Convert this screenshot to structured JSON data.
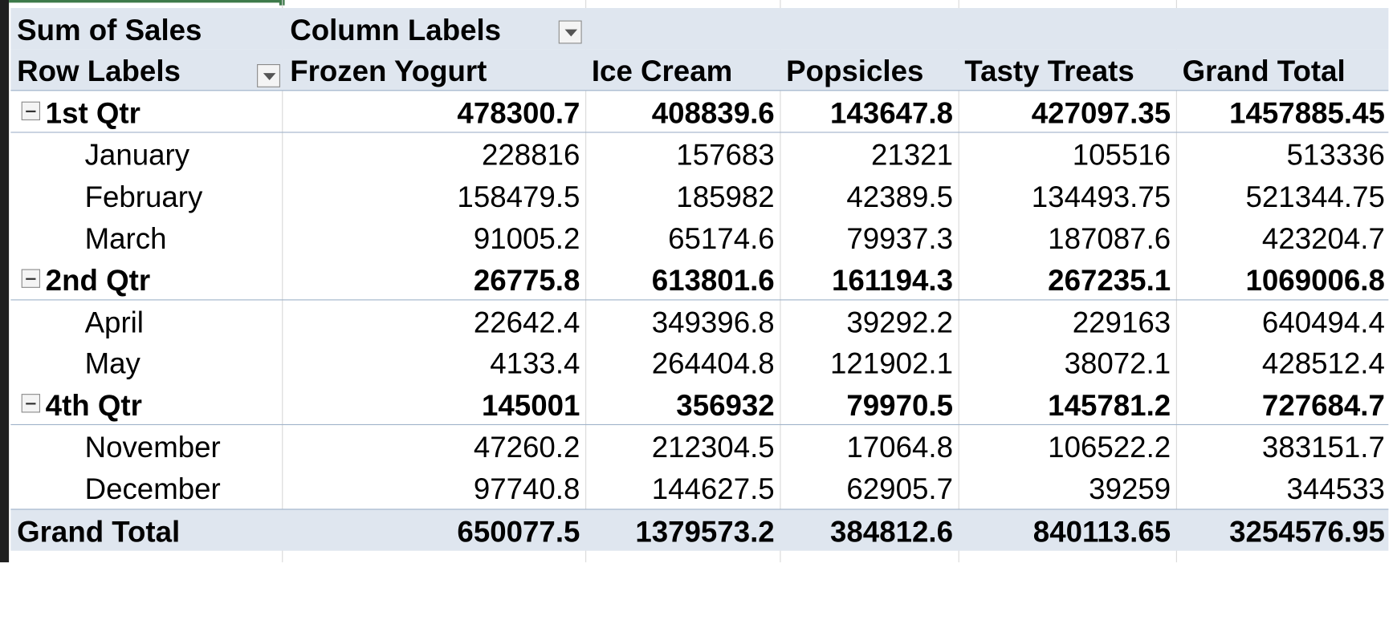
{
  "pivot": {
    "value_field": "Sum of Sales",
    "column_labels": "Column Labels",
    "row_labels": "Row Labels",
    "columns": [
      "Frozen Yogurt",
      "Ice Cream",
      "Popsicles",
      "Tasty Treats",
      "Grand Total"
    ],
    "rows": [
      {
        "type": "quarter",
        "label": "1st Qtr",
        "values": [
          "478300.7",
          "408839.6",
          "143647.8",
          "427097.35",
          "1457885.45"
        ]
      },
      {
        "type": "month",
        "label": "January",
        "values": [
          "228816",
          "157683",
          "21321",
          "105516",
          "513336"
        ]
      },
      {
        "type": "month",
        "label": "February",
        "values": [
          "158479.5",
          "185982",
          "42389.5",
          "134493.75",
          "521344.75"
        ]
      },
      {
        "type": "month",
        "label": "March",
        "values": [
          "91005.2",
          "65174.6",
          "79937.3",
          "187087.6",
          "423204.7"
        ]
      },
      {
        "type": "quarter",
        "label": "2nd Qtr",
        "values": [
          "26775.8",
          "613801.6",
          "161194.3",
          "267235.1",
          "1069006.8"
        ]
      },
      {
        "type": "month",
        "label": "April",
        "values": [
          "22642.4",
          "349396.8",
          "39292.2",
          "229163",
          "640494.4"
        ]
      },
      {
        "type": "month",
        "label": "May",
        "values": [
          "4133.4",
          "264404.8",
          "121902.1",
          "38072.1",
          "428512.4"
        ]
      },
      {
        "type": "quarter",
        "label": "4th Qtr",
        "values": [
          "145001",
          "356932",
          "79970.5",
          "145781.2",
          "727684.7"
        ]
      },
      {
        "type": "month",
        "label": "November",
        "values": [
          "47260.2",
          "212304.5",
          "17064.8",
          "106522.2",
          "383151.7"
        ]
      },
      {
        "type": "month",
        "label": "December",
        "values": [
          "97740.8",
          "144627.5",
          "62905.7",
          "39259",
          "344533"
        ]
      }
    ],
    "grand_total": {
      "label": "Grand Total",
      "values": [
        "650077.5",
        "1379573.2",
        "384812.6",
        "840113.65",
        "3254576.95"
      ]
    }
  },
  "icons": {
    "column_filter": "dropdown-arrow-icon",
    "row_filter": "dropdown-arrow-icon",
    "collapse": "collapse-minus-icon"
  },
  "colors": {
    "header_fill": "#dfe6ef",
    "border": "#9fb2c9",
    "selection": "#3d7a4a"
  }
}
